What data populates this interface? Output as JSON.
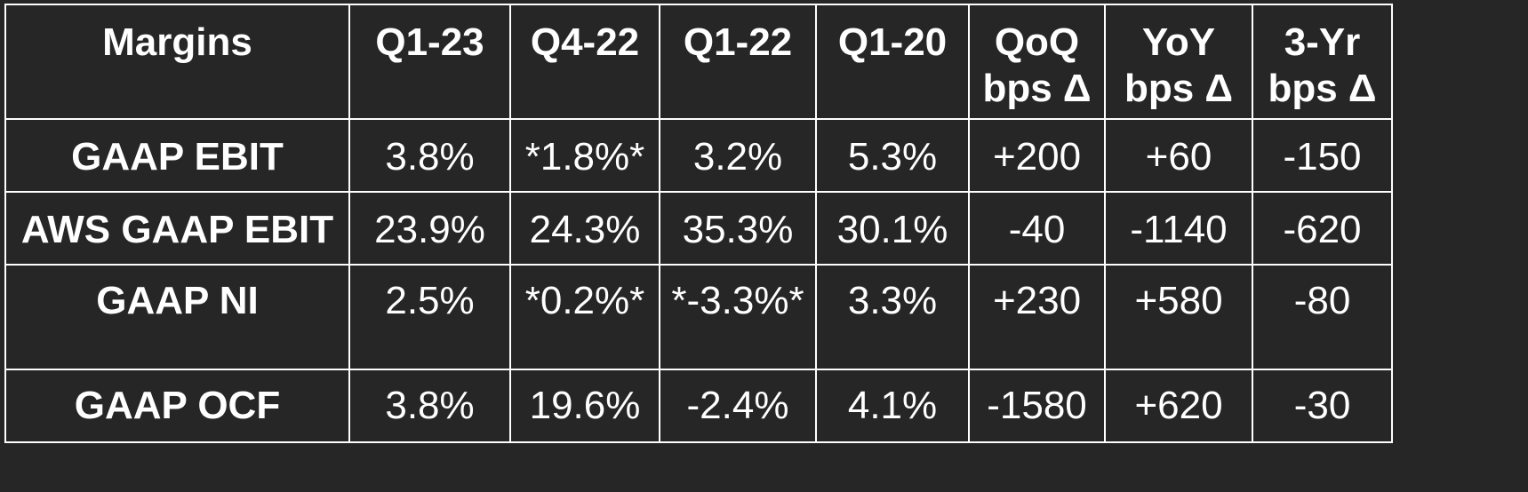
{
  "table": {
    "headers": [
      "Margins",
      "Q1-23",
      "Q4-22",
      "Q1-22",
      "Q1-20",
      "QoQ bps Δ",
      "YoY bps Δ",
      "3-Yr bps Δ"
    ],
    "header_lines": [
      [
        "Margins"
      ],
      [
        "Q1-23"
      ],
      [
        "Q4-22"
      ],
      [
        "Q1-22"
      ],
      [
        "Q1-20"
      ],
      [
        "QoQ",
        "bps Δ"
      ],
      [
        "YoY",
        "bps Δ"
      ],
      [
        "3-Yr",
        "bps Δ"
      ]
    ],
    "rows": [
      {
        "label": "GAAP EBIT",
        "values": [
          "3.8%",
          "*1.8%*",
          "3.2%",
          "5.3%",
          "+200",
          "+60",
          "-150"
        ]
      },
      {
        "label": "AWS GAAP EBIT",
        "values": [
          "23.9%",
          "24.3%",
          "35.3%",
          "30.1%",
          "-40",
          "-1140",
          "-620"
        ]
      },
      {
        "label": "GAAP NI",
        "values": [
          "2.5%",
          "*0.2%*",
          "*-3.3%*",
          "3.3%",
          "+230",
          "+580",
          "-80"
        ]
      },
      {
        "label": "GAAP OCF",
        "values": [
          "3.8%",
          "19.6%",
          "-2.4%",
          "4.1%",
          "-1580",
          "+620",
          "-30"
        ]
      }
    ]
  },
  "colors": {
    "background": "#262626",
    "text": "#ffffff",
    "grid": "#ffffff"
  }
}
